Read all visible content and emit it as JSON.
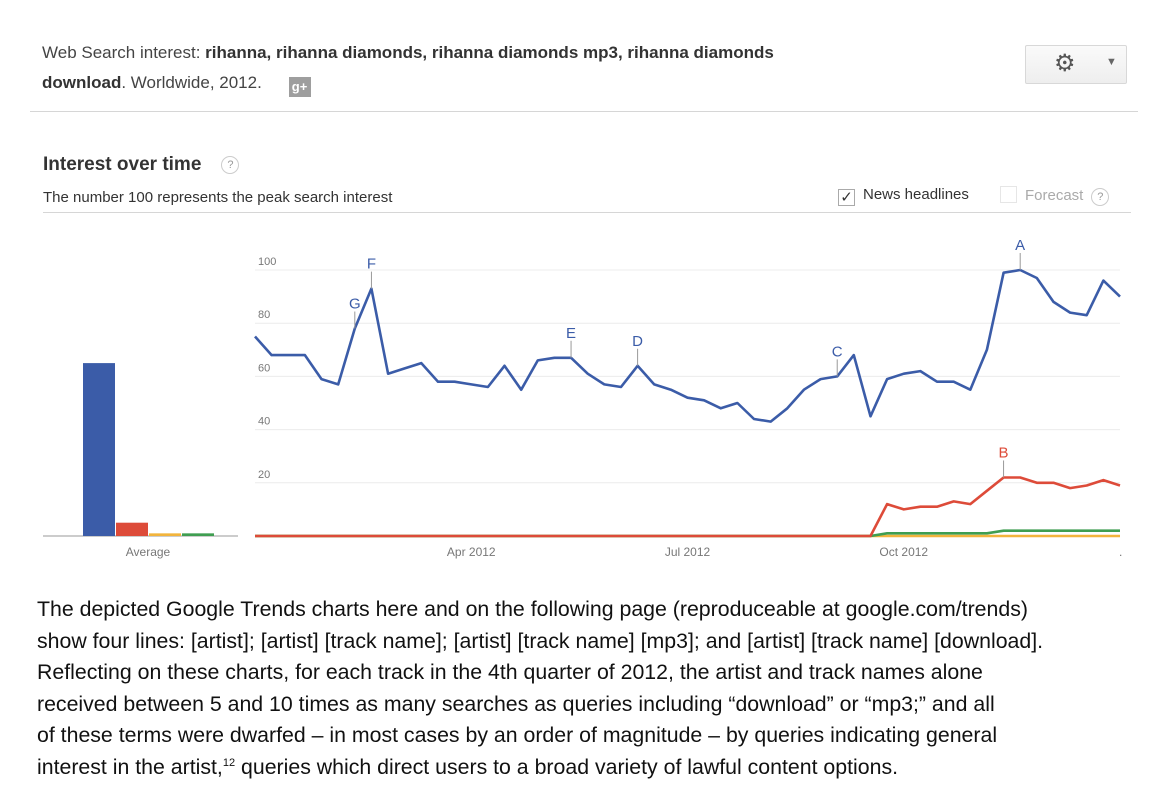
{
  "header": {
    "prefix": "Web Search interest: ",
    "terms_line1": "rihanna, rihanna diamonds, rihanna diamonds mp3, rihanna diamonds",
    "terms_line2": "download",
    "suffix": ". Worldwide, 2012.",
    "gplus": "g+"
  },
  "section": {
    "title": "Interest over time",
    "help": "?",
    "subtitle": "The number 100 represents the peak search interest"
  },
  "options": {
    "news_label": "News headlines",
    "news_checked": true,
    "forecast_label": "Forecast",
    "forecast_checked": false
  },
  "chart_data": {
    "type": "line",
    "y_ticks": [
      20,
      40,
      60,
      80,
      100
    ],
    "ylim": [
      0,
      100
    ],
    "x_tick_labels": [
      "Apr 2012",
      "Jul 2012",
      "Oct 2012"
    ],
    "x_tick_weeks": [
      13,
      26,
      39
    ],
    "average_label": "Average",
    "averages": [
      {
        "color": "#3b5ca8",
        "value": 65
      },
      {
        "color": "#dd4b39",
        "value": 5
      },
      {
        "color": "#f2b43c",
        "value": 1
      },
      {
        "color": "#3f9e51",
        "value": 1
      }
    ],
    "series": [
      {
        "color": "#3b5ca8",
        "values": [
          75,
          68,
          68,
          68,
          59,
          57,
          78,
          93,
          61,
          63,
          65,
          58,
          58,
          57,
          56,
          64,
          55,
          66,
          67,
          67,
          61,
          57,
          56,
          64,
          57,
          55,
          52,
          51,
          48,
          50,
          44,
          43,
          48,
          55,
          59,
          60,
          68,
          45,
          59,
          61,
          62,
          58,
          58,
          55,
          70,
          99,
          100,
          97,
          88,
          84,
          83,
          96,
          90
        ]
      },
      {
        "color": "#dd4b39",
        "values": [
          0,
          0,
          0,
          0,
          0,
          0,
          0,
          0,
          0,
          0,
          0,
          0,
          0,
          0,
          0,
          0,
          0,
          0,
          0,
          0,
          0,
          0,
          0,
          0,
          0,
          0,
          0,
          0,
          0,
          0,
          0,
          0,
          0,
          0,
          0,
          0,
          0,
          0,
          12,
          10,
          11,
          11,
          13,
          12,
          17,
          22,
          22,
          20,
          20,
          18,
          19,
          21,
          19
        ]
      },
      {
        "color": "#f2b43c",
        "values": [
          0,
          0,
          0,
          0,
          0,
          0,
          0,
          0,
          0,
          0,
          0,
          0,
          0,
          0,
          0,
          0,
          0,
          0,
          0,
          0,
          0,
          0,
          0,
          0,
          0,
          0,
          0,
          0,
          0,
          0,
          0,
          0,
          0,
          0,
          0,
          0,
          0,
          0,
          0,
          0,
          0,
          0,
          0,
          0,
          0,
          0,
          0,
          0,
          0,
          0,
          0,
          0,
          0
        ]
      },
      {
        "color": "#3f9e51",
        "values": [
          0,
          0,
          0,
          0,
          0,
          0,
          0,
          0,
          0,
          0,
          0,
          0,
          0,
          0,
          0,
          0,
          0,
          0,
          0,
          0,
          0,
          0,
          0,
          0,
          0,
          0,
          0,
          0,
          0,
          0,
          0,
          0,
          0,
          0,
          0,
          0,
          0,
          0,
          1,
          1,
          1,
          1,
          1,
          1,
          1,
          2,
          2,
          2,
          2,
          2,
          2,
          2,
          2
        ]
      }
    ],
    "annotations": [
      {
        "letter": "G",
        "series": 0,
        "week": 6,
        "color": "#3b5ca8"
      },
      {
        "letter": "F",
        "series": 0,
        "week": 7,
        "color": "#3b5ca8"
      },
      {
        "letter": "E",
        "series": 0,
        "week": 19,
        "color": "#3b5ca8"
      },
      {
        "letter": "D",
        "series": 0,
        "week": 23,
        "color": "#3b5ca8"
      },
      {
        "letter": "C",
        "series": 0,
        "week": 35,
        "color": "#3b5ca8"
      },
      {
        "letter": "B",
        "series": 1,
        "week": 45,
        "color": "#dd4b39"
      },
      {
        "letter": "A",
        "series": 0,
        "week": 46,
        "color": "#3b5ca8"
      }
    ]
  },
  "body_text": {
    "line1": "The depicted Google Trends charts here and on the following page (reproduceable at google.com/trends)",
    "line2": "show four lines: [artist]; [artist] [track name]; [artist] [track name] [mp3]; and [artist] [track name] [download].",
    "line3": "Reflecting on these charts, for each track in the 4th quarter of 2012, the artist and track names alone",
    "line4": "received between 5 and 10 times as many searches as queries including “download” or “mp3;” and all",
    "line5": "of these terms were dwarfed – in most cases by an order of magnitude – by queries indicating general",
    "line6a": "interest in the artist,",
    "line6_sup": "12",
    "line6b": " queries which direct users to a broad variety of lawful content options."
  }
}
